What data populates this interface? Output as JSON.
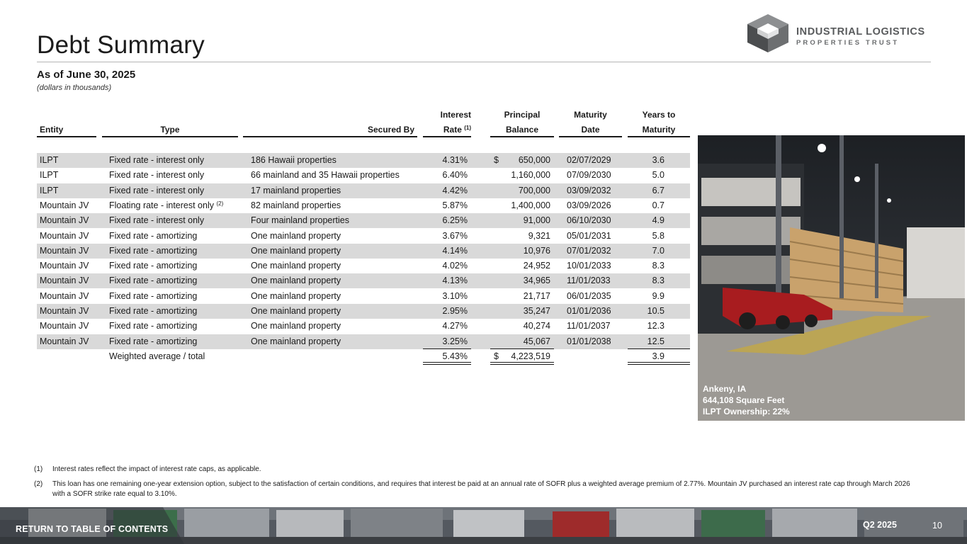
{
  "header": {
    "title": "Debt Summary",
    "logo_line1": "INDUSTRIAL LOGISTICS",
    "logo_line2": "PROPERTIES TRUST"
  },
  "subtitle": {
    "as_of": "As of June 30, 2025",
    "units": "(dollars in thousands)"
  },
  "table": {
    "headers": {
      "entity": "Entity",
      "type": "Type",
      "secured_by": "Secured By",
      "rate_line1": "Interest",
      "rate_line2": "Rate",
      "rate_note": "(1)",
      "balance_line1": "Principal",
      "balance_line2": "Balance",
      "maturity_line1": "Maturity",
      "maturity_line2": "Date",
      "years_line1": "Years to",
      "years_line2": "Maturity"
    },
    "rows": [
      {
        "entity": "ILPT",
        "type": "Fixed rate - interest only",
        "type_note": "",
        "secured_by": "186 Hawaii properties",
        "rate": "4.31%",
        "currency": "$",
        "balance": "650,000",
        "maturity": "02/07/2029",
        "years": "3.6"
      },
      {
        "entity": "ILPT",
        "type": "Fixed rate - interest only",
        "type_note": "",
        "secured_by": "66 mainland and 35 Hawaii properties",
        "rate": "6.40%",
        "currency": "",
        "balance": "1,160,000",
        "maturity": "07/09/2030",
        "years": "5.0"
      },
      {
        "entity": "ILPT",
        "type": "Fixed rate - interest only",
        "type_note": "",
        "secured_by": "17 mainland properties",
        "rate": "4.42%",
        "currency": "",
        "balance": "700,000",
        "maturity": "03/09/2032",
        "years": "6.7"
      },
      {
        "entity": "Mountain JV",
        "type": "Floating rate - interest only",
        "type_note": "(2)",
        "secured_by": "82 mainland properties",
        "rate": "5.87%",
        "currency": "",
        "balance": "1,400,000",
        "maturity": "03/09/2026",
        "years": "0.7"
      },
      {
        "entity": "Mountain JV",
        "type": "Fixed rate - interest only",
        "type_note": "",
        "secured_by": "Four mainland properties",
        "rate": "6.25%",
        "currency": "",
        "balance": "91,000",
        "maturity": "06/10/2030",
        "years": "4.9"
      },
      {
        "entity": "Mountain JV",
        "type": "Fixed rate - amortizing",
        "type_note": "",
        "secured_by": "One mainland property",
        "rate": "3.67%",
        "currency": "",
        "balance": "9,321",
        "maturity": "05/01/2031",
        "years": "5.8"
      },
      {
        "entity": "Mountain JV",
        "type": "Fixed rate - amortizing",
        "type_note": "",
        "secured_by": "One mainland property",
        "rate": "4.14%",
        "currency": "",
        "balance": "10,976",
        "maturity": "07/01/2032",
        "years": "7.0"
      },
      {
        "entity": "Mountain JV",
        "type": "Fixed rate - amortizing",
        "type_note": "",
        "secured_by": "One mainland property",
        "rate": "4.02%",
        "currency": "",
        "balance": "24,952",
        "maturity": "10/01/2033",
        "years": "8.3"
      },
      {
        "entity": "Mountain JV",
        "type": "Fixed rate - amortizing",
        "type_note": "",
        "secured_by": "One mainland property",
        "rate": "4.13%",
        "currency": "",
        "balance": "34,965",
        "maturity": "11/01/2033",
        "years": "8.3"
      },
      {
        "entity": "Mountain JV",
        "type": "Fixed rate - amortizing",
        "type_note": "",
        "secured_by": "One mainland property",
        "rate": "3.10%",
        "currency": "",
        "balance": "21,717",
        "maturity": "06/01/2035",
        "years": "9.9"
      },
      {
        "entity": "Mountain JV",
        "type": "Fixed rate - amortizing",
        "type_note": "",
        "secured_by": "One mainland property",
        "rate": "2.95%",
        "currency": "",
        "balance": "35,247",
        "maturity": "01/01/2036",
        "years": "10.5"
      },
      {
        "entity": "Mountain JV",
        "type": "Fixed rate - amortizing",
        "type_note": "",
        "secured_by": "One mainland property",
        "rate": "4.27%",
        "currency": "",
        "balance": "40,274",
        "maturity": "11/01/2037",
        "years": "12.3"
      },
      {
        "entity": "Mountain JV",
        "type": "Fixed rate - amortizing",
        "type_note": "",
        "secured_by": "One mainland property",
        "rate": "3.25%",
        "currency": "",
        "balance": "45,067",
        "maturity": "01/01/2038",
        "years": "12.5"
      }
    ],
    "total": {
      "label": "Weighted average / total",
      "rate": "5.43%",
      "currency": "$",
      "balance": "4,223,519",
      "years": "3.9"
    }
  },
  "photo": {
    "caption_line1": "Ankeny, IA",
    "caption_line2": "644,108 Square Feet",
    "caption_line3": "ILPT Ownership: 22%"
  },
  "footnotes": [
    {
      "num": "(1)",
      "text": "Interest rates reflect the impact of interest rate caps, as applicable."
    },
    {
      "num": "(2)",
      "text": "This loan has one remaining one-year extension option, subject to the satisfaction of certain conditions, and requires that interest be paid at an annual rate of SOFR plus a weighted average premium of 2.77%. Mountain JV purchased an interest rate cap through March 2026 with a SOFR strike rate equal to 3.10%."
    }
  ],
  "footer": {
    "link": "RETURN TO TABLE OF CONTENTS",
    "quarter": "Q2 2025",
    "page": "10"
  },
  "colors": {
    "row_shade": "#d9d9d9",
    "logo_gray": "#595b5d"
  }
}
